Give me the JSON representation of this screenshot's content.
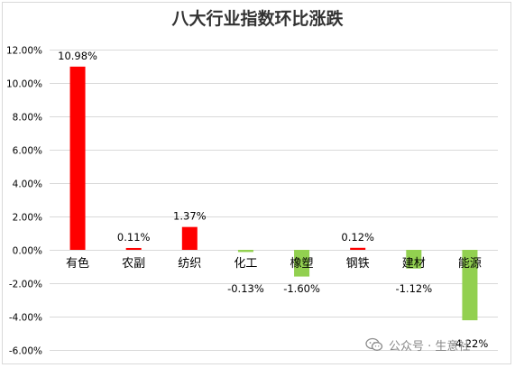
{
  "chart_data": {
    "type": "bar",
    "title": "八大行业指数环比涨跌",
    "categories": [
      "有色",
      "农副",
      "纺织",
      "化工",
      "橡塑",
      "钢铁",
      "建材",
      "能源"
    ],
    "values": [
      10.98,
      0.11,
      1.37,
      -0.13,
      -1.6,
      0.12,
      -1.12,
      -4.22
    ],
    "data_labels": [
      "10.98%",
      "0.11%",
      "1.37%",
      "-0.13%",
      "-1.60%",
      "0.12%",
      "-1.12%",
      "-4.22%"
    ],
    "y_ticks": [
      12,
      10,
      8,
      6,
      4,
      2,
      0,
      -2,
      -4,
      -6
    ],
    "y_tick_labels": [
      "12.00%",
      "10.00%",
      "8.00%",
      "6.00%",
      "4.00%",
      "2.00%",
      "0.00%",
      "-2.00%",
      "-4.00%",
      "-6.00%"
    ],
    "ylim": [
      -6,
      12
    ],
    "grid": true,
    "colors": {
      "positive": "#ff0000",
      "negative": "#92d050",
      "grid": "#d9d9d9",
      "text": "#000000"
    }
  },
  "watermark": {
    "text": "公众号 · 生意社",
    "icon": "wechat-icon"
  }
}
